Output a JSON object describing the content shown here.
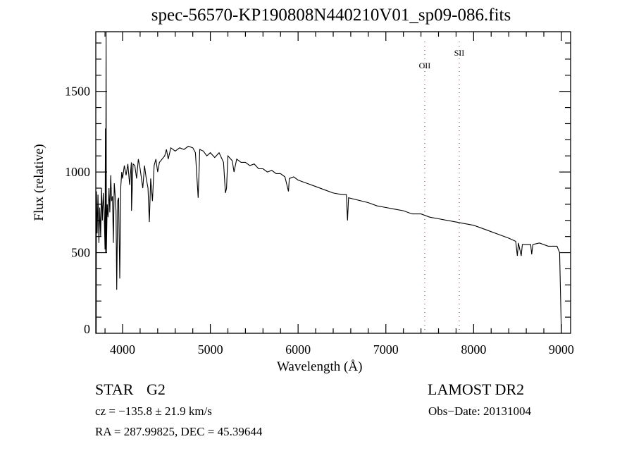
{
  "chart_data": {
    "type": "line",
    "title": "spec-56570-KP190808N440210V01_sp09-086.fits",
    "xlabel": "Wavelength (Å)",
    "ylabel": "Flux (relative)",
    "xlim": [
      3695,
      9105
    ],
    "ylim": [
      0,
      1870
    ],
    "xticks": [
      4000,
      5000,
      6000,
      7000,
      8000,
      9000
    ],
    "yticks": [
      0,
      500,
      1000,
      1500
    ],
    "grid": false,
    "line_markers": [
      {
        "label": "OII",
        "x": 7443
      },
      {
        "label": "SII",
        "x": 7836
      }
    ],
    "series": [
      {
        "name": "spectrum",
        "points": [
          [
            3700,
            0
          ],
          [
            3702,
            880
          ],
          [
            3710,
            620
          ],
          [
            3720,
            860
          ],
          [
            3730,
            560
          ],
          [
            3740,
            780
          ],
          [
            3750,
            600
          ],
          [
            3760,
            900
          ],
          [
            3770,
            700
          ],
          [
            3780,
            870
          ],
          [
            3790,
            760
          ],
          [
            3800,
            520
          ],
          [
            3805,
            1270
          ],
          [
            3808,
            500
          ],
          [
            3812,
            1870
          ],
          [
            3815,
            500
          ],
          [
            3825,
            800
          ],
          [
            3835,
            720
          ],
          [
            3845,
            900
          ],
          [
            3855,
            750
          ],
          [
            3865,
            980
          ],
          [
            3875,
            820
          ],
          [
            3885,
            850
          ],
          [
            3895,
            560
          ],
          [
            3905,
            930
          ],
          [
            3915,
            860
          ],
          [
            3925,
            760
          ],
          [
            3933,
            270
          ],
          [
            3945,
            820
          ],
          [
            3955,
            840
          ],
          [
            3968,
            340
          ],
          [
            3980,
            910
          ],
          [
            3990,
            1000
          ],
          [
            4000,
            960
          ],
          [
            4020,
            1040
          ],
          [
            4040,
            980
          ],
          [
            4060,
            1050
          ],
          [
            4080,
            920
          ],
          [
            4100,
            1060
          ],
          [
            4102,
            760
          ],
          [
            4120,
            1050
          ],
          [
            4140,
            1040
          ],
          [
            4160,
            960
          ],
          [
            4180,
            1080
          ],
          [
            4200,
            1020
          ],
          [
            4230,
            900
          ],
          [
            4250,
            1040
          ],
          [
            4270,
            960
          ],
          [
            4290,
            900
          ],
          [
            4305,
            690
          ],
          [
            4320,
            960
          ],
          [
            4340,
            820
          ],
          [
            4360,
            1040
          ],
          [
            4380,
            1080
          ],
          [
            4400,
            1000
          ],
          [
            4420,
            1060
          ],
          [
            4450,
            1080
          ],
          [
            4480,
            1100
          ],
          [
            4500,
            1140
          ],
          [
            4520,
            1080
          ],
          [
            4550,
            1150
          ],
          [
            4600,
            1130
          ],
          [
            4650,
            1150
          ],
          [
            4700,
            1140
          ],
          [
            4750,
            1160
          ],
          [
            4800,
            1150
          ],
          [
            4830,
            1120
          ],
          [
            4861,
            840
          ],
          [
            4880,
            1140
          ],
          [
            4920,
            1130
          ],
          [
            4960,
            1100
          ],
          [
            5000,
            1120
          ],
          [
            5050,
            1090
          ],
          [
            5100,
            1120
          ],
          [
            5150,
            1060
          ],
          [
            5172,
            870
          ],
          [
            5185,
            900
          ],
          [
            5200,
            1100
          ],
          [
            5250,
            1070
          ],
          [
            5270,
            1000
          ],
          [
            5300,
            1080
          ],
          [
            5350,
            1060
          ],
          [
            5400,
            1060
          ],
          [
            5450,
            1040
          ],
          [
            5500,
            1050
          ],
          [
            5550,
            1020
          ],
          [
            5600,
            1020
          ],
          [
            5650,
            1000
          ],
          [
            5700,
            1010
          ],
          [
            5750,
            990
          ],
          [
            5800,
            990
          ],
          [
            5850,
            970
          ],
          [
            5890,
            880
          ],
          [
            5900,
            960
          ],
          [
            5950,
            970
          ],
          [
            6000,
            950
          ],
          [
            6100,
            930
          ],
          [
            6200,
            910
          ],
          [
            6300,
            890
          ],
          [
            6400,
            870
          ],
          [
            6500,
            860
          ],
          [
            6550,
            860
          ],
          [
            6563,
            700
          ],
          [
            6575,
            840
          ],
          [
            6650,
            830
          ],
          [
            6800,
            810
          ],
          [
            6900,
            790
          ],
          [
            7000,
            780
          ],
          [
            7100,
            770
          ],
          [
            7200,
            760
          ],
          [
            7300,
            740
          ],
          [
            7400,
            740
          ],
          [
            7500,
            720
          ],
          [
            7600,
            710
          ],
          [
            7700,
            700
          ],
          [
            7800,
            690
          ],
          [
            7900,
            680
          ],
          [
            8000,
            670
          ],
          [
            8100,
            650
          ],
          [
            8200,
            630
          ],
          [
            8300,
            610
          ],
          [
            8400,
            590
          ],
          [
            8480,
            570
          ],
          [
            8498,
            480
          ],
          [
            8510,
            560
          ],
          [
            8542,
            480
          ],
          [
            8555,
            550
          ],
          [
            8650,
            550
          ],
          [
            8662,
            490
          ],
          [
            8675,
            550
          ],
          [
            8750,
            560
          ],
          [
            8850,
            540
          ],
          [
            8950,
            540
          ],
          [
            8980,
            500
          ],
          [
            9000,
            0
          ]
        ]
      }
    ]
  },
  "info": {
    "object_class": "STAR",
    "subclass": "G2",
    "survey": "LAMOST DR2",
    "cz": "cz = −135.8 ± 21.9 km/s",
    "obs_date": "Obs−Date: 20131004",
    "coords": "RA = 287.99825, DEC =  45.39644"
  }
}
